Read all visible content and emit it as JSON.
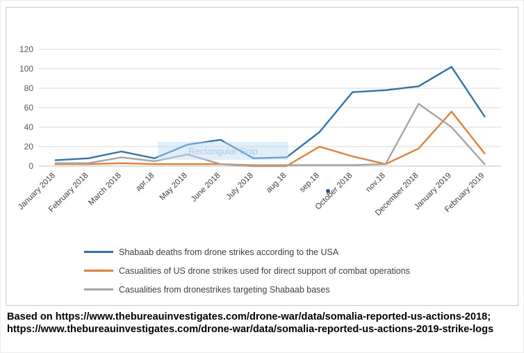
{
  "chart_data": {
    "type": "line",
    "title": "",
    "xlabel": "",
    "ylabel": "",
    "categories": [
      "January 2018",
      "February 2018",
      "March 2018",
      "apr.18",
      "May 2018",
      "June 2018",
      "July 2018",
      "aug.18",
      "sep.18",
      "October 2018",
      "nov.18",
      "December 2018",
      "January 2019",
      "February 2019"
    ],
    "series": [
      {
        "name": "Shabaab deaths from drone strikes according to the USA",
        "color": "#2E74B5",
        "values": [
          6,
          8,
          15,
          8,
          22,
          27,
          8,
          9,
          35,
          76,
          78,
          82,
          102,
          51
        ]
      },
      {
        "name": "Casualities of US drone strikes used for direct support of combat operations",
        "color": "#ED7D31",
        "values": [
          2,
          2,
          3,
          2,
          2,
          2,
          0,
          0,
          20,
          10,
          2,
          18,
          56,
          13
        ]
      },
      {
        "name": "Casualities from dronestrikes targeting Shabaab bases",
        "color": "#A5A5A5",
        "values": [
          3,
          3,
          9,
          5,
          12,
          2,
          1,
          1,
          1,
          1,
          2,
          64,
          40,
          2
        ]
      }
    ],
    "ylim": [
      0,
      120
    ],
    "yticks": [
      0,
      20,
      40,
      60,
      80,
      100,
      120
    ],
    "grid": true,
    "legend_position": "bottom-left",
    "colors": {
      "axis_line": "#bfbfbf",
      "gridline": "#d9d9d9",
      "tick_label": "#595959",
      "category_label": "#404040"
    }
  },
  "watermark": {
    "label": "Rectangular Snip"
  },
  "footer": {
    "line1": "Based on https://www.thebureauinvestigates.com/drone-war/data/somalia-reported-us-actions-2018;",
    "line2": "https://www.thebureauinvestigates.com/drone-war/data/somalia-reported-us-actions-2019-strike-logs"
  }
}
